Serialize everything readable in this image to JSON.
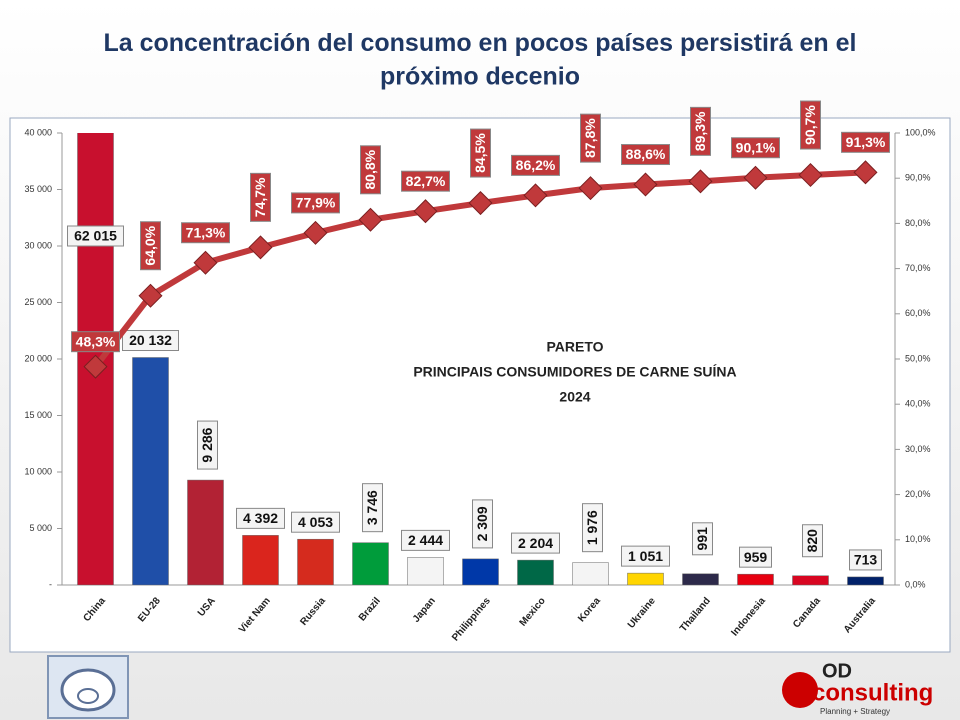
{
  "chart_data": {
    "type": "pareto",
    "title": "La concentración del consumo en pocos países persistirá en el próximo decenio",
    "inner_title": [
      "PARETO",
      "PRINCIPAIS CONSUMIDORES DE CARNE SUÍNA",
      "2024"
    ],
    "categories": [
      "China",
      "EU-28",
      "USA",
      "Viet Nam",
      "Russia",
      "Brazil",
      "Japan",
      "Philippines",
      "Mexico",
      "Korea",
      "Ukraine",
      "Thailand",
      "Indonesia",
      "Canada",
      "Australia"
    ],
    "values": [
      62015,
      20132,
      9286,
      4392,
      4053,
      3746,
      2444,
      2309,
      2204,
      1976,
      1051,
      991,
      959,
      820,
      713
    ],
    "value_labels": [
      "62 015",
      "20 132",
      "9 286",
      "4 392",
      "4 053",
      "3 746",
      "2 444",
      "2 309",
      "2 204",
      "1 976",
      "1 051",
      "991",
      "959",
      "820",
      "713"
    ],
    "colors": [
      "#c8102e",
      "#1f4fa8",
      "#b22234",
      "#da251d",
      "#d52b1e",
      "#009c3b",
      "#f4f4f4",
      "#0038a8",
      "#006847",
      "#f4f4f4",
      "#ffd500",
      "#2d2a4a",
      "#e70011",
      "#d80621",
      "#012169"
    ],
    "cumulative": [
      48.3,
      64.0,
      71.3,
      74.7,
      77.9,
      80.8,
      82.7,
      84.5,
      86.2,
      87.8,
      88.6,
      89.3,
      90.1,
      90.7,
      91.3
    ],
    "cumulative_labels": [
      "48,3%",
      "64,0%",
      "71,3%",
      "74,7%",
      "77,9%",
      "80,8%",
      "82,7%",
      "84,5%",
      "86,2%",
      "87,8%",
      "88,6%",
      "89,3%",
      "90,1%",
      "90,7%",
      "91,3%"
    ],
    "line_color": "#c0393b",
    "ylim": [
      0,
      40000
    ],
    "yticks": [
      {
        "value": 0,
        "label": "-"
      },
      {
        "value": 5000,
        "label": "5 000"
      },
      {
        "value": 10000,
        "label": "10 000"
      },
      {
        "value": 15000,
        "label": "15 000"
      },
      {
        "value": 20000,
        "label": "20 000"
      },
      {
        "value": 25000,
        "label": "25 000"
      },
      {
        "value": 30000,
        "label": "30 000"
      },
      {
        "value": 35000,
        "label": "35 000"
      },
      {
        "value": 40000,
        "label": "40 000"
      }
    ],
    "y2lim": [
      0,
      100
    ],
    "y2ticks": [
      {
        "value": 0,
        "label": "0,0%"
      },
      {
        "value": 10,
        "label": "10,0%"
      },
      {
        "value": 20,
        "label": "20,0%"
      },
      {
        "value": 30,
        "label": "30,0%"
      },
      {
        "value": 40,
        "label": "40,0%"
      },
      {
        "value": 50,
        "label": "50,0%"
      },
      {
        "value": 60,
        "label": "60,0%"
      },
      {
        "value": 70,
        "label": "70,0%"
      },
      {
        "value": 80,
        "label": "80,0%"
      },
      {
        "value": 90,
        "label": "90,0%"
      },
      {
        "value": 100,
        "label": "100,0%"
      }
    ],
    "logo": {
      "name_a": "OD",
      "name_b": "consulting",
      "tagline": "Planning + Strategy"
    }
  }
}
